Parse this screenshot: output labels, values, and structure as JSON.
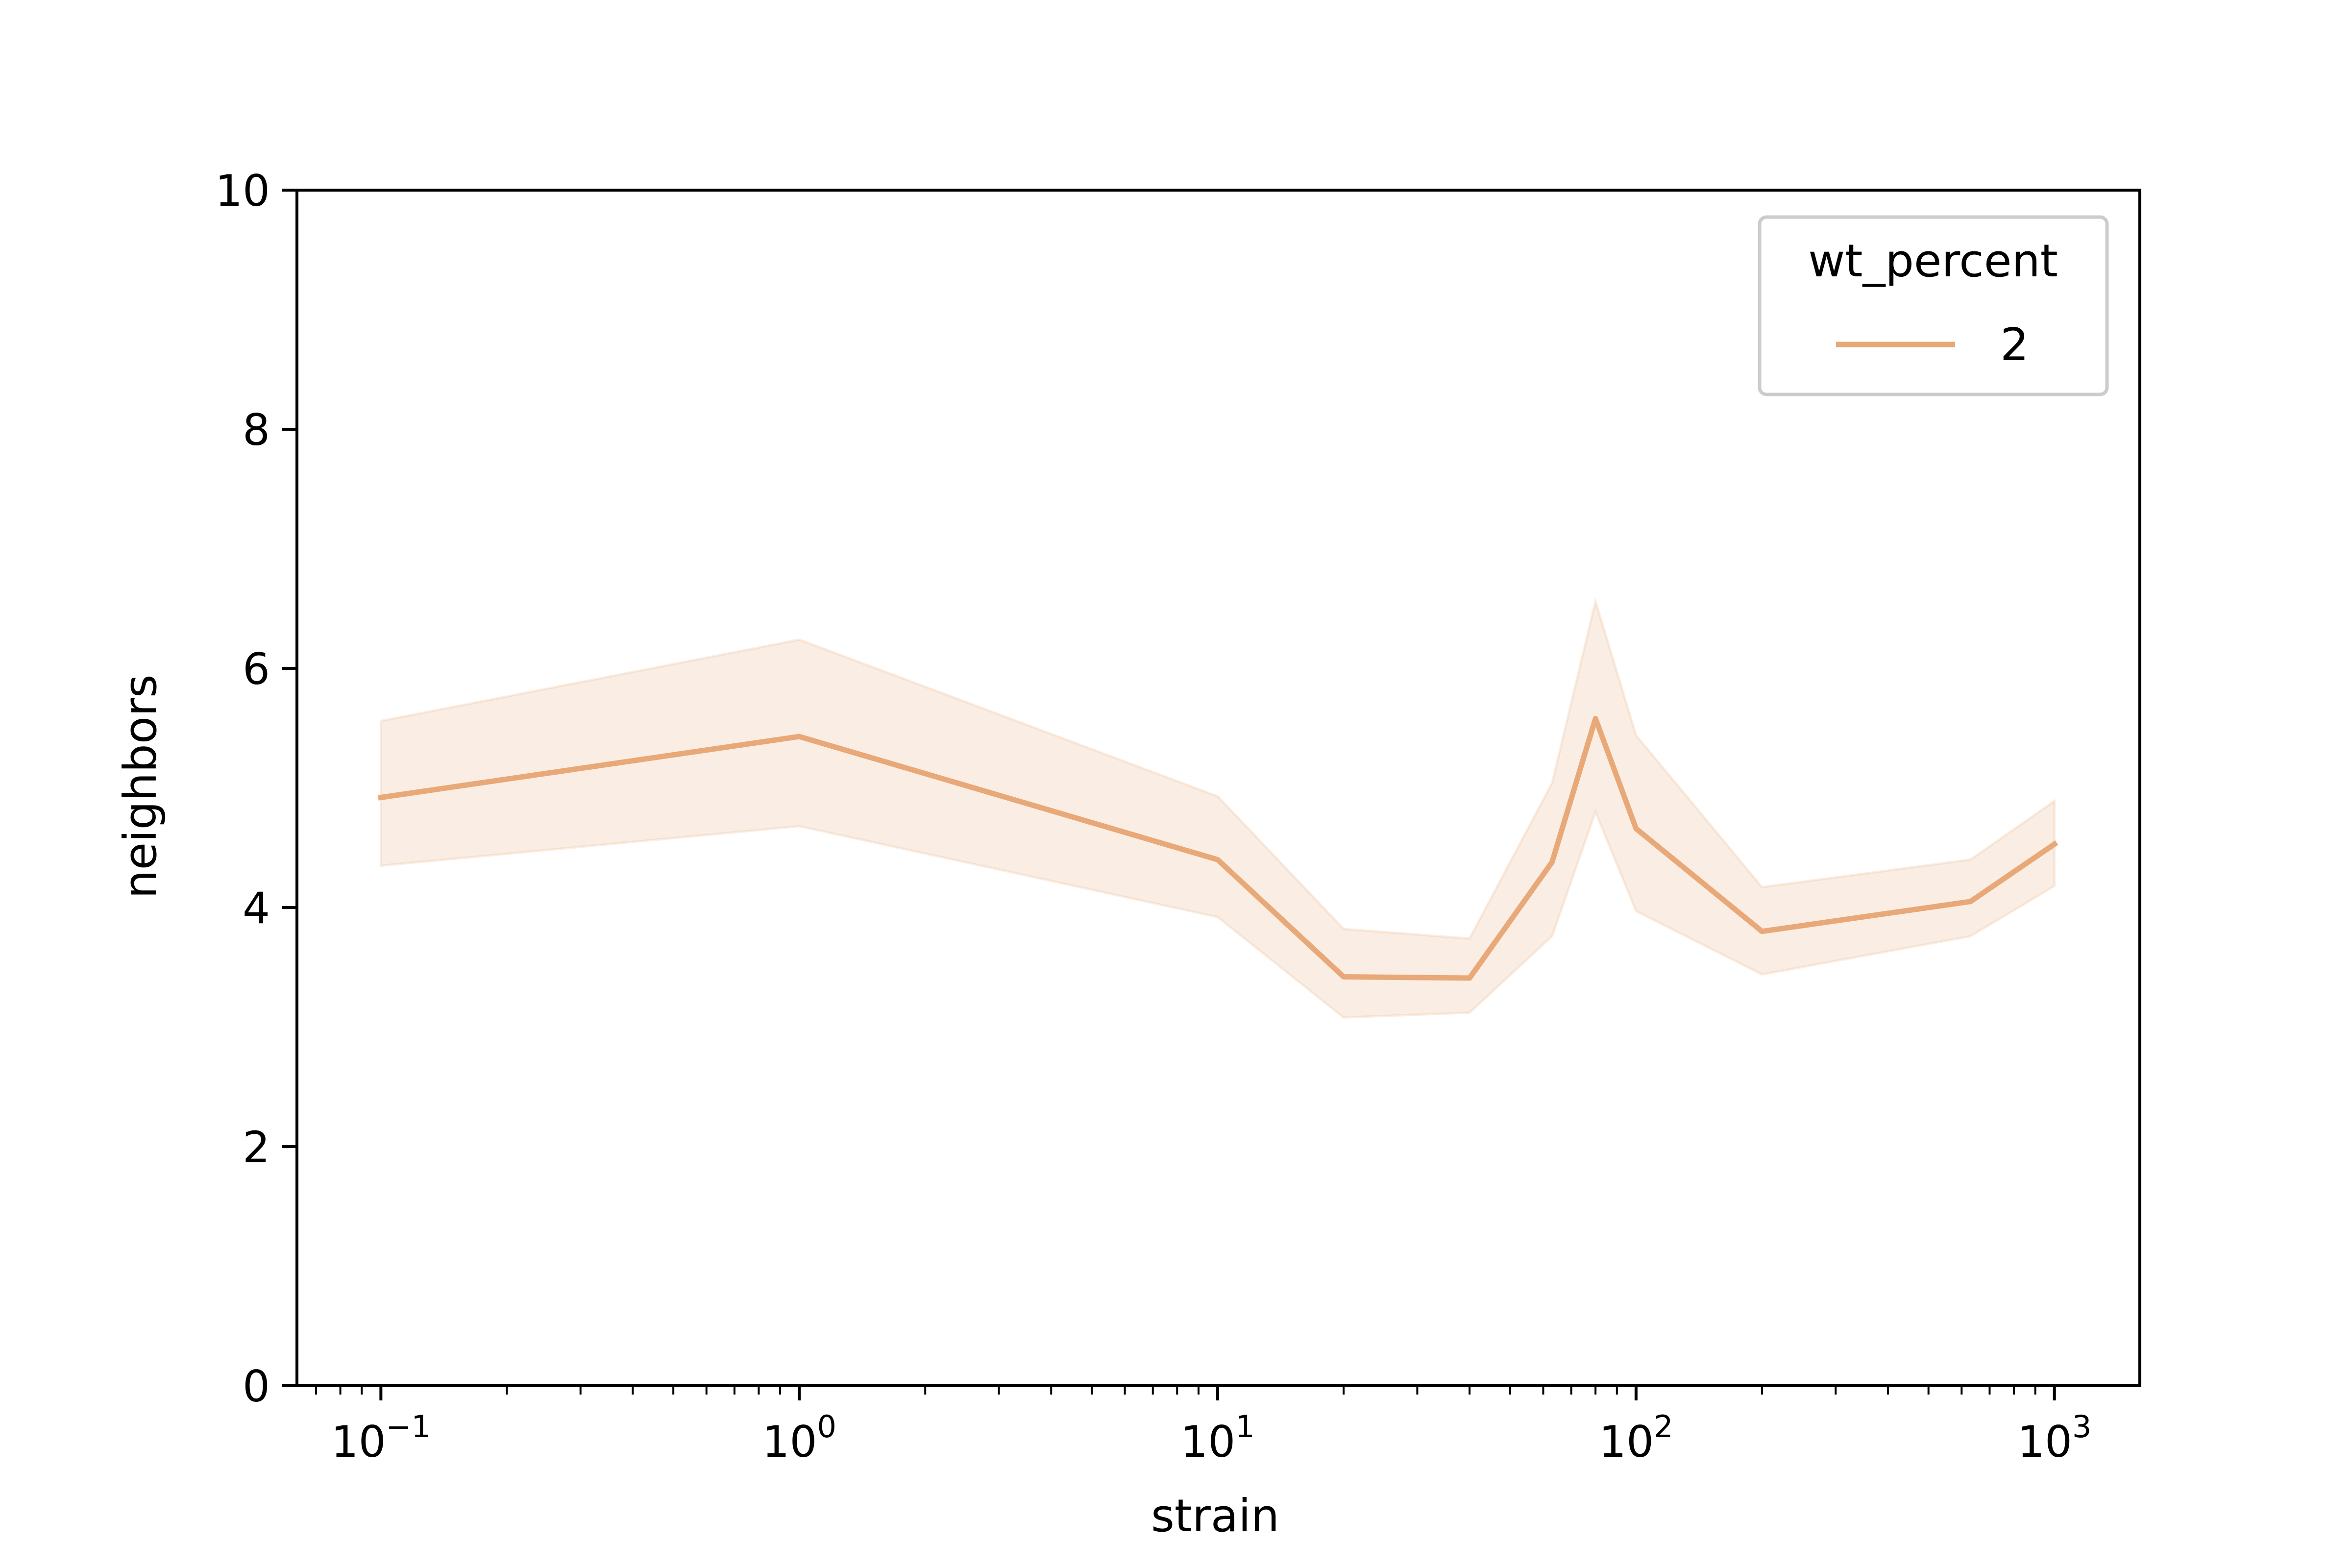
{
  "chart_data": {
    "type": "line",
    "xlabel": "strain",
    "ylabel": "neighbors",
    "xscale": "log",
    "xlim": [
      0.063,
      1600
    ],
    "ylim": [
      0,
      10
    ],
    "grid": false,
    "x_ticks": [
      {
        "base": "10",
        "exp": "−1",
        "value": 0.1
      },
      {
        "base": "10",
        "exp": "0",
        "value": 1
      },
      {
        "base": "10",
        "exp": "1",
        "value": 10
      },
      {
        "base": "10",
        "exp": "2",
        "value": 100
      },
      {
        "base": "10",
        "exp": "3",
        "value": 1000
      }
    ],
    "y_ticks": [
      "0",
      "2",
      "4",
      "6",
      "8",
      "10"
    ],
    "legend": {
      "title": "wt_percent",
      "placement": "top-right"
    },
    "color": "#e8a878",
    "series": [
      {
        "name": "2",
        "x": [
          0.1,
          1,
          10,
          20,
          40,
          63,
          80,
          100,
          200,
          630,
          1000
        ],
        "y": [
          4.92,
          5.43,
          4.4,
          3.42,
          3.41,
          4.38,
          5.58,
          4.66,
          3.8,
          4.05,
          4.53
        ],
        "ci_lower": [
          4.35,
          4.68,
          3.92,
          3.08,
          3.12,
          3.76,
          4.8,
          3.97,
          3.44,
          3.76,
          4.18
        ],
        "ci_upper": [
          5.56,
          6.24,
          4.93,
          3.82,
          3.74,
          5.04,
          6.56,
          5.44,
          4.17,
          4.4,
          4.89
        ]
      }
    ]
  }
}
